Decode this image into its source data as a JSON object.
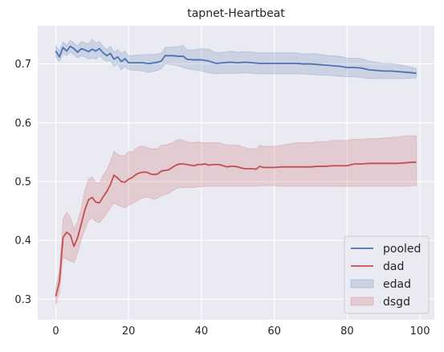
{
  "chart_data": {
    "type": "line",
    "title": "tapnet-Heartbeat",
    "xlabel": "",
    "ylabel": "",
    "xlim": [
      -4.95,
      103.95
    ],
    "ylim": [
      0.265,
      0.765
    ],
    "xticks": [
      0,
      20,
      40,
      60,
      80,
      100
    ],
    "yticks": [
      0.3,
      0.4,
      0.5,
      0.6,
      0.7
    ],
    "grid": true,
    "legend_position": "lower-right",
    "legend": [
      "pooled",
      "dad",
      "edad",
      "dsgd"
    ],
    "series": [
      {
        "name": "pooled",
        "color": "#4c72b0",
        "x": [
          0,
          1,
          2,
          3,
          4,
          5,
          6,
          7,
          8,
          9,
          10,
          11,
          12,
          13,
          14,
          15,
          16,
          17,
          18,
          19,
          20,
          22,
          24,
          25,
          26,
          28,
          29,
          30,
          32,
          34,
          35,
          36,
          38,
          40,
          42,
          44,
          46,
          48,
          50,
          52,
          54,
          56,
          58,
          60,
          62,
          64,
          66,
          68,
          70,
          72,
          74,
          76,
          78,
          80,
          82,
          84,
          86,
          88,
          90,
          92,
          94,
          96,
          98,
          99
        ],
        "values": [
          0.722,
          0.712,
          0.728,
          0.722,
          0.73,
          0.726,
          0.72,
          0.726,
          0.724,
          0.721,
          0.725,
          0.722,
          0.726,
          0.719,
          0.714,
          0.718,
          0.708,
          0.712,
          0.704,
          0.709,
          0.702,
          0.702,
          0.702,
          0.701,
          0.701,
          0.703,
          0.705,
          0.714,
          0.714,
          0.713,
          0.713,
          0.708,
          0.707,
          0.707,
          0.705,
          0.701,
          0.702,
          0.703,
          0.702,
          0.703,
          0.702,
          0.701,
          0.701,
          0.701,
          0.701,
          0.701,
          0.701,
          0.7,
          0.7,
          0.699,
          0.698,
          0.697,
          0.696,
          0.694,
          0.694,
          0.693,
          0.69,
          0.689,
          0.688,
          0.688,
          0.687,
          0.686,
          0.685,
          0.684
        ],
        "lower": [
          0.712,
          0.704,
          0.718,
          0.714,
          0.72,
          0.716,
          0.71,
          0.714,
          0.712,
          0.708,
          0.71,
          0.708,
          0.714,
          0.708,
          0.704,
          0.706,
          0.696,
          0.7,
          0.69,
          0.696,
          0.69,
          0.689,
          0.688,
          0.686,
          0.686,
          0.689,
          0.692,
          0.7,
          0.699,
          0.696,
          0.694,
          0.692,
          0.69,
          0.688,
          0.685,
          0.683,
          0.684,
          0.684,
          0.684,
          0.685,
          0.684,
          0.683,
          0.683,
          0.683,
          0.683,
          0.683,
          0.683,
          0.683,
          0.682,
          0.681,
          0.681,
          0.68,
          0.679,
          0.678,
          0.678,
          0.677,
          0.675,
          0.675,
          0.675,
          0.675,
          0.675,
          0.675,
          0.676,
          0.676
        ],
        "upper": [
          0.732,
          0.722,
          0.738,
          0.732,
          0.74,
          0.736,
          0.73,
          0.738,
          0.736,
          0.734,
          0.742,
          0.736,
          0.738,
          0.73,
          0.724,
          0.73,
          0.72,
          0.724,
          0.718,
          0.722,
          0.714,
          0.715,
          0.716,
          0.716,
          0.716,
          0.717,
          0.718,
          0.728,
          0.729,
          0.73,
          0.732,
          0.724,
          0.724,
          0.726,
          0.725,
          0.719,
          0.72,
          0.722,
          0.72,
          0.721,
          0.72,
          0.719,
          0.719,
          0.719,
          0.719,
          0.719,
          0.719,
          0.717,
          0.718,
          0.717,
          0.715,
          0.714,
          0.713,
          0.71,
          0.71,
          0.709,
          0.705,
          0.703,
          0.701,
          0.701,
          0.699,
          0.697,
          0.694,
          0.692
        ]
      },
      {
        "name": "dad",
        "color": "#c44e52",
        "x": [
          0,
          1,
          2,
          3,
          4,
          5,
          6,
          7,
          8,
          9,
          10,
          11,
          12,
          13,
          14,
          15,
          16,
          17,
          18,
          19,
          20,
          21,
          22,
          23,
          24,
          25,
          26,
          27,
          28,
          29,
          30,
          31,
          32,
          33,
          34,
          35,
          36,
          37,
          38,
          39,
          40,
          41,
          42,
          43,
          44,
          45,
          46,
          47,
          48,
          49,
          50,
          51,
          52,
          53,
          54,
          55,
          56,
          57,
          58,
          59,
          60,
          62,
          64,
          66,
          68,
          70,
          72,
          74,
          76,
          78,
          80,
          82,
          84,
          86,
          88,
          90,
          92,
          94,
          96,
          98,
          99
        ],
        "values": [
          0.305,
          0.33,
          0.405,
          0.414,
          0.409,
          0.39,
          0.405,
          0.428,
          0.452,
          0.469,
          0.473,
          0.465,
          0.464,
          0.474,
          0.483,
          0.495,
          0.511,
          0.506,
          0.5,
          0.499,
          0.504,
          0.507,
          0.512,
          0.515,
          0.516,
          0.516,
          0.513,
          0.512,
          0.513,
          0.518,
          0.519,
          0.52,
          0.524,
          0.528,
          0.53,
          0.53,
          0.529,
          0.528,
          0.527,
          0.529,
          0.529,
          0.53,
          0.528,
          0.529,
          0.529,
          0.529,
          0.527,
          0.525,
          0.526,
          0.526,
          0.525,
          0.523,
          0.522,
          0.522,
          0.522,
          0.521,
          0.526,
          0.524,
          0.524,
          0.524,
          0.524,
          0.525,
          0.525,
          0.525,
          0.525,
          0.525,
          0.526,
          0.526,
          0.527,
          0.527,
          0.527,
          0.53,
          0.53,
          0.531,
          0.531,
          0.531,
          0.531,
          0.531,
          0.532,
          0.533,
          0.533
        ],
        "lower": [
          0.29,
          0.312,
          0.372,
          0.368,
          0.365,
          0.362,
          0.378,
          0.402,
          0.418,
          0.434,
          0.438,
          0.432,
          0.43,
          0.438,
          0.446,
          0.456,
          0.464,
          0.46,
          0.458,
          0.455,
          0.46,
          0.462,
          0.466,
          0.47,
          0.472,
          0.474,
          0.472,
          0.47,
          0.472,
          0.476,
          0.478,
          0.48,
          0.484,
          0.488,
          0.49,
          0.49,
          0.49,
          0.49,
          0.49,
          0.491,
          0.491,
          0.492,
          0.492,
          0.492,
          0.492,
          0.492,
          0.492,
          0.492,
          0.492,
          0.492,
          0.492,
          0.492,
          0.492,
          0.492,
          0.492,
          0.492,
          0.493,
          0.493,
          0.493,
          0.493,
          0.493,
          0.492,
          0.492,
          0.492,
          0.492,
          0.492,
          0.492,
          0.492,
          0.492,
          0.492,
          0.492,
          0.492,
          0.492,
          0.492,
          0.492,
          0.492,
          0.492,
          0.492,
          0.492,
          0.493,
          0.493
        ],
        "upper": [
          0.32,
          0.348,
          0.436,
          0.448,
          0.44,
          0.42,
          0.432,
          0.454,
          0.486,
          0.504,
          0.508,
          0.498,
          0.498,
          0.51,
          0.52,
          0.534,
          0.552,
          0.546,
          0.544,
          0.544,
          0.552,
          0.55,
          0.556,
          0.56,
          0.56,
          0.558,
          0.556,
          0.556,
          0.556,
          0.562,
          0.562,
          0.564,
          0.566,
          0.57,
          0.572,
          0.57,
          0.568,
          0.566,
          0.566,
          0.568,
          0.566,
          0.566,
          0.566,
          0.566,
          0.566,
          0.566,
          0.564,
          0.562,
          0.562,
          0.562,
          0.562,
          0.56,
          0.558,
          0.556,
          0.556,
          0.556,
          0.562,
          0.56,
          0.56,
          0.56,
          0.56,
          0.562,
          0.564,
          0.566,
          0.566,
          0.566,
          0.568,
          0.568,
          0.57,
          0.57,
          0.57,
          0.572,
          0.572,
          0.573,
          0.573,
          0.574,
          0.575,
          0.576,
          0.578,
          0.578,
          0.578
        ]
      }
    ],
    "bands": [
      {
        "name": "edad",
        "color": "#4c72b0",
        "series_ref": "pooled"
      },
      {
        "name": "dsgd",
        "color": "#c44e52",
        "series_ref": "dad"
      }
    ]
  }
}
